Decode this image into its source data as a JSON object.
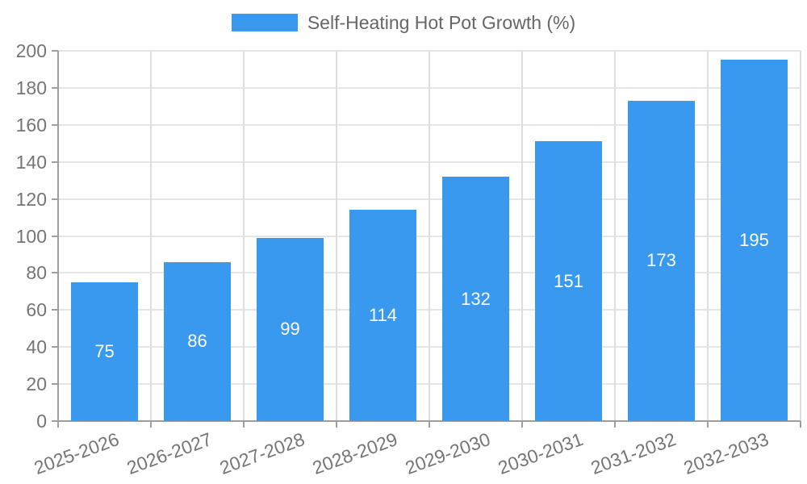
{
  "chart_data": {
    "type": "bar",
    "title": "Self-Heating Hot Pot Growth (%)",
    "categories": [
      "2025-2026",
      "2026-2027",
      "2027-2028",
      "2028-2029",
      "2029-2030",
      "2030-2031",
      "2031-2032",
      "2032-2033"
    ],
    "values": [
      75,
      86,
      99,
      114,
      132,
      151,
      173,
      195
    ],
    "xlabel": "",
    "ylabel": "",
    "ylim": [
      0,
      200
    ],
    "ytick_step": 20,
    "grid": true,
    "legend_position": "top",
    "bar_color": "#3899ee",
    "value_label_color": "#ffffff"
  }
}
